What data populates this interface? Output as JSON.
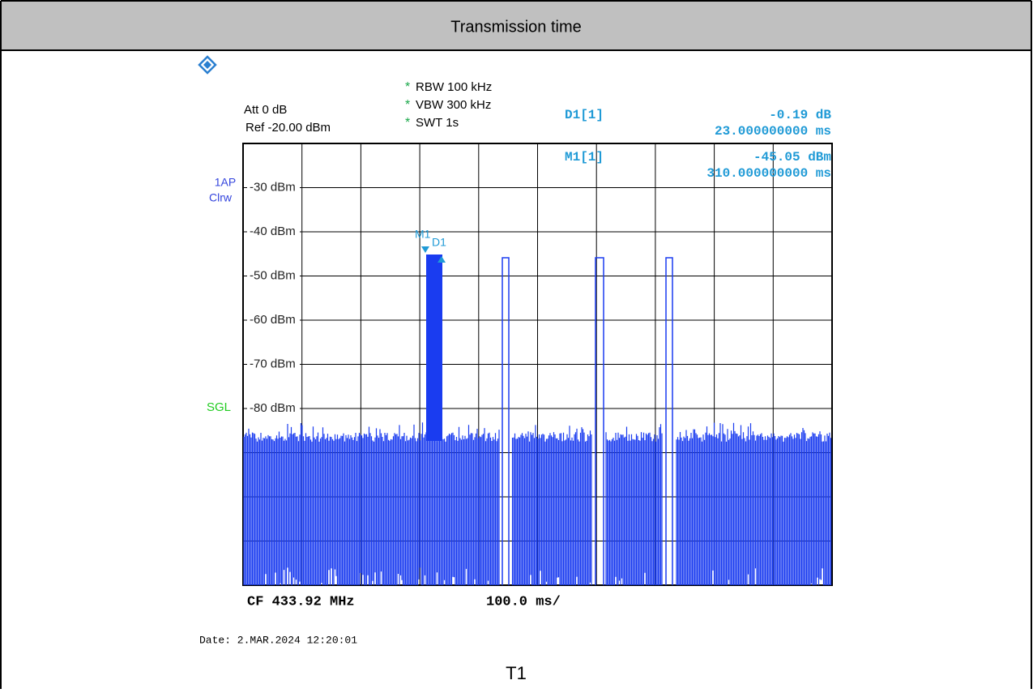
{
  "header": {
    "title": "Transmission time"
  },
  "instrument": {
    "settings_left": [
      "Att  0 dB",
      "Ref  -20.00 dBm"
    ],
    "settings_mid": [
      {
        "flag": "*",
        "text": "RBW 100 kHz"
      },
      {
        "flag": "*",
        "text": "VBW 300 kHz"
      },
      {
        "flag": "*",
        "text": "SWT 1s"
      }
    ],
    "markers": [
      {
        "name": "D1[1]",
        "level": "-0.19 dB",
        "time": "23.000000000 ms"
      },
      {
        "name": "M1[1]",
        "level": "-45.05 dBm",
        "time": "310.000000000 ms"
      }
    ],
    "trace_labels": [
      "1AP",
      "Clrw"
    ],
    "mode": "SGL",
    "y_labels": [
      "-30 dBm",
      "-40 dBm",
      "-50 dBm",
      "-60 dBm",
      "-70 dBm",
      "-80 dBm"
    ],
    "marker_tags": [
      "M1",
      "D1"
    ],
    "center": "CF 433.92 MHz",
    "span": "100.0 ms/",
    "date": "Date: 2.MAR.2024  12:20:01"
  },
  "caption": "T1"
}
